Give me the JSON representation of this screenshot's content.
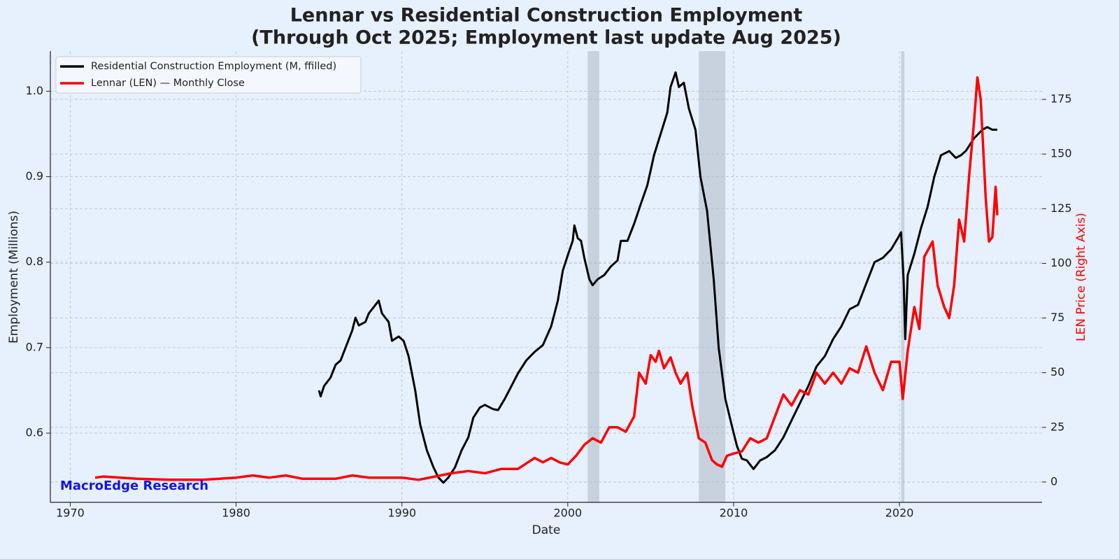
{
  "chart_data": {
    "type": "line",
    "title": "Lennar vs Residential Construction Employment",
    "subtitle": "(Through Oct 2025; Employment last update Aug 2025)",
    "x_label": "Date",
    "y_label": "Employment (Millions)",
    "y2_label": "LEN Price (Right Axis)",
    "watermark": "MacroEdge Research",
    "xlim": [
      1968.8,
      2028.6
    ],
    "xticks": [
      1970,
      1980,
      1990,
      2000,
      2010,
      2020
    ],
    "ylim": [
      0.519,
      1.047
    ],
    "yticks": [
      0.6,
      0.7,
      0.8,
      0.9,
      {
        "value": 1.0,
        "label": "1.0"
      }
    ],
    "y2lim": [
      -9.3,
      197.1
    ],
    "y2ticks": [
      0,
      25,
      50,
      75,
      100,
      125,
      150,
      175
    ],
    "grid": true,
    "legend": "upper-left",
    "shaded_periods": [
      [
        2001.2,
        2001.9
      ],
      [
        2007.9,
        2009.5
      ],
      [
        2020.1,
        2020.3
      ]
    ],
    "series": [
      {
        "name": "Residential Construction Employment (M, ffilled)",
        "color": "#000000",
        "axis": "y",
        "x": [
          1985.0,
          1985.1,
          1985.3,
          1985.7,
          1986.0,
          1986.3,
          1986.6,
          1987.0,
          1987.2,
          1987.4,
          1987.8,
          1988.0,
          1988.4,
          1988.6,
          1988.8,
          1989.2,
          1989.4,
          1989.8,
          1990.1,
          1990.4,
          1990.8,
          1991.1,
          1991.5,
          1991.9,
          1992.2,
          1992.5,
          1992.8,
          1993.2,
          1993.6,
          1994.0,
          1994.3,
          1994.7,
          1995.0,
          1995.5,
          1995.8,
          1996.2,
          1996.6,
          1997.0,
          1997.5,
          1998.0,
          1998.5,
          1999.0,
          1999.4,
          1999.7,
          2000.0,
          2000.3,
          2000.4,
          2000.6,
          2000.8,
          2001.0,
          2001.3,
          2001.5,
          2001.8,
          2002.2,
          2002.6,
          2003.0,
          2003.2,
          2003.6,
          2004.0,
          2004.4,
          2004.8,
          2005.2,
          2005.6,
          2006.0,
          2006.2,
          2006.5,
          2006.7,
          2007.0,
          2007.3,
          2007.7,
          2008.0,
          2008.4,
          2008.8,
          2009.1,
          2009.5,
          2009.9,
          2010.2,
          2010.5,
          2010.8,
          2011.2,
          2011.6,
          2012.0,
          2012.5,
          2013.0,
          2013.5,
          2014.0,
          2014.5,
          2015.0,
          2015.5,
          2016.0,
          2016.5,
          2017.0,
          2017.5,
          2018.0,
          2018.5,
          2019.0,
          2019.5,
          2019.9,
          2020.1,
          2020.25,
          2020.35,
          2020.5,
          2020.9,
          2021.3,
          2021.7,
          2022.1,
          2022.5,
          2023.0,
          2023.4,
          2023.7,
          2024.0,
          2024.5,
          2025.0,
          2025.3,
          2025.6,
          2025.9
        ],
        "values": [
          0.65,
          0.643,
          0.655,
          0.665,
          0.68,
          0.685,
          0.7,
          0.72,
          0.735,
          0.726,
          0.73,
          0.74,
          0.75,
          0.755,
          0.74,
          0.73,
          0.708,
          0.713,
          0.708,
          0.69,
          0.65,
          0.61,
          0.58,
          0.56,
          0.548,
          0.542,
          0.548,
          0.56,
          0.58,
          0.595,
          0.618,
          0.63,
          0.633,
          0.628,
          0.627,
          0.64,
          0.655,
          0.67,
          0.685,
          0.695,
          0.703,
          0.725,
          0.755,
          0.79,
          0.808,
          0.825,
          0.843,
          0.828,
          0.825,
          0.805,
          0.78,
          0.773,
          0.78,
          0.785,
          0.795,
          0.802,
          0.825,
          0.825,
          0.845,
          0.868,
          0.89,
          0.925,
          0.95,
          0.975,
          1.005,
          1.022,
          1.005,
          1.01,
          0.98,
          0.955,
          0.9,
          0.86,
          0.78,
          0.7,
          0.64,
          0.608,
          0.585,
          0.57,
          0.568,
          0.558,
          0.568,
          0.572,
          0.58,
          0.595,
          0.615,
          0.635,
          0.655,
          0.678,
          0.69,
          0.71,
          0.725,
          0.745,
          0.75,
          0.775,
          0.8,
          0.805,
          0.815,
          0.828,
          0.835,
          0.78,
          0.71,
          0.785,
          0.81,
          0.84,
          0.865,
          0.9,
          0.925,
          0.93,
          0.922,
          0.925,
          0.93,
          0.945,
          0.955,
          0.958,
          0.955,
          0.955
        ]
      },
      {
        "name": "Lennar (LEN) — Monthly Close",
        "color": "#ff0000",
        "axis": "y2",
        "x": [
          1971.5,
          1972,
          1974,
          1976,
          1978,
          1980,
          1981,
          1982,
          1983,
          1984,
          1986,
          1987,
          1988,
          1990,
          1991,
          1992,
          1993,
          1994,
          1995,
          1996,
          1997,
          1998,
          1998.5,
          1999,
          1999.5,
          2000,
          2000.5,
          2001,
          2001.5,
          2002,
          2002.5,
          2003,
          2003.5,
          2004,
          2004.3,
          2004.7,
          2005,
          2005.3,
          2005.5,
          2005.8,
          2006.2,
          2006.5,
          2006.8,
          2007.2,
          2007.5,
          2007.9,
          2008.3,
          2008.7,
          2009.0,
          2009.3,
          2009.6,
          2010,
          2010.5,
          2011,
          2011.5,
          2012,
          2012.5,
          2013,
          2013.5,
          2014,
          2014.5,
          2015,
          2015.5,
          2016,
          2016.5,
          2017,
          2017.5,
          2018,
          2018.5,
          2019,
          2019.5,
          2020,
          2020.2,
          2020.5,
          2020.9,
          2021.2,
          2021.5,
          2022,
          2022.3,
          2022.7,
          2023,
          2023.3,
          2023.6,
          2023.9,
          2024.2,
          2024.5,
          2024.7,
          2024.9,
          2025.2,
          2025.4,
          2025.6,
          2025.8,
          2025.9
        ],
        "values": [
          2,
          2.5,
          1.5,
          1,
          1,
          2,
          3,
          2,
          3,
          1.5,
          1.5,
          3,
          2,
          2,
          1,
          2.5,
          4,
          5,
          4,
          6,
          6,
          11,
          9,
          11,
          9,
          8,
          12,
          17,
          20,
          18,
          25,
          25,
          23,
          30,
          50,
          45,
          58,
          55,
          60,
          52,
          57,
          50,
          45,
          50,
          35,
          20,
          18,
          10,
          8,
          7,
          12,
          13,
          14,
          20,
          18,
          20,
          30,
          40,
          35,
          42,
          40,
          50,
          45,
          50,
          45,
          52,
          50,
          62,
          50,
          42,
          55,
          55,
          38,
          60,
          80,
          70,
          103,
          110,
          90,
          80,
          75,
          90,
          120,
          110,
          140,
          165,
          185,
          175,
          130,
          110,
          112,
          135,
          122
        ]
      }
    ]
  }
}
